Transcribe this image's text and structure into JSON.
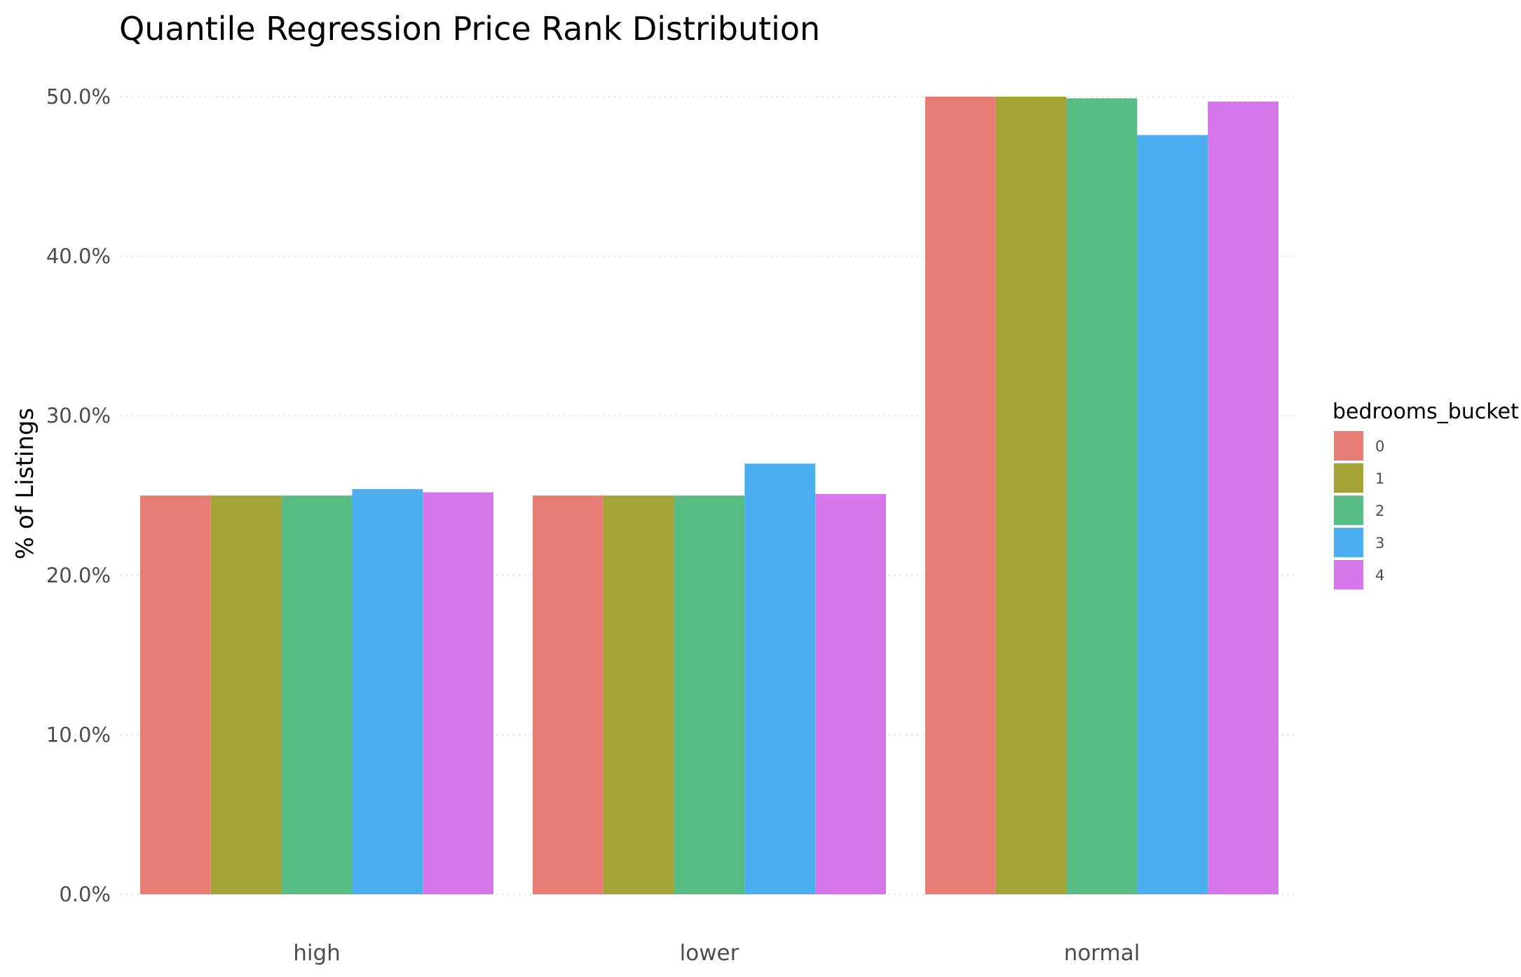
{
  "chart_data": {
    "type": "bar",
    "title": "Quantile Regression Price Rank Distribution",
    "xlabel": "",
    "ylabel": "% of Listings",
    "categories": [
      "high",
      "lower",
      "normal"
    ],
    "series": [
      {
        "name": "0",
        "values": [
          25.0,
          25.0,
          50.0
        ]
      },
      {
        "name": "1",
        "values": [
          25.0,
          25.0,
          50.0
        ]
      },
      {
        "name": "2",
        "values": [
          25.0,
          25.0,
          49.9
        ]
      },
      {
        "name": "3",
        "values": [
          25.4,
          27.0,
          47.6
        ]
      },
      {
        "name": "4",
        "values": [
          25.2,
          25.1,
          49.7
        ]
      }
    ],
    "ylim": [
      0,
      50
    ],
    "yticks": [
      "0.0%",
      "10.0%",
      "20.0%",
      "30.0%",
      "40.0%",
      "50.0%"
    ],
    "ytick_values": [
      0,
      10,
      20,
      30,
      40,
      50
    ],
    "grid": "horizontal-dotted",
    "legend": {
      "title": "bedrooms_bucket",
      "placement": "right"
    },
    "colors": [
      "#e77d72",
      "#a3a336",
      "#56bc83",
      "#4baeee",
      "#d776eb"
    ]
  }
}
